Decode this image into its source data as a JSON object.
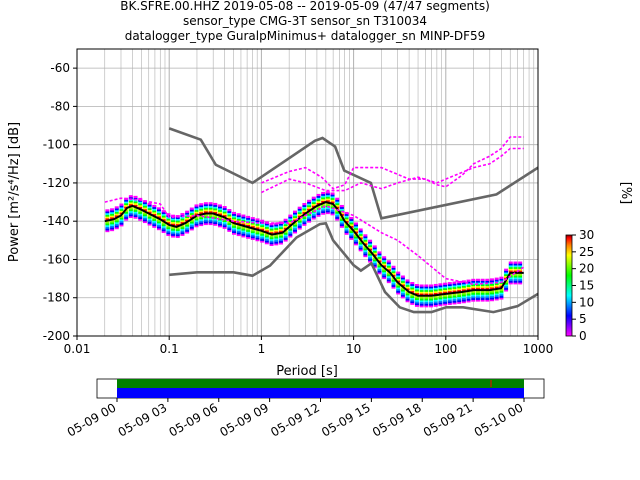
{
  "title_lines": [
    "BK.SFRE.00.HHZ   2019-05-08 -- 2019-05-09  (47/47 segments)",
    "sensor_type CMG-3T sensor_sn T310034",
    "datalogger_type GuralpMinimus+ datalogger_sn MINP-DF59"
  ],
  "colorbar": {
    "label": "[%]",
    "ticks": [
      "0",
      "5",
      "10",
      "15",
      "20",
      "25",
      "30"
    ],
    "range": [
      0,
      30
    ],
    "colors": [
      "#ff00ff",
      "#8000ff",
      "#0000ff",
      "#0080ff",
      "#00ffff",
      "#00ff80",
      "#00ff00",
      "#80ff00",
      "#ffff00",
      "#ff8000",
      "#ff0000",
      "#800000"
    ]
  },
  "timeline": {
    "tick_labels": [
      "05-09 00",
      "05-09 03",
      "05-09 06",
      "05-09 09",
      "05-09 12",
      "05-09 15",
      "05-09 18",
      "05-09 21",
      "05-10 00"
    ],
    "colors": {
      "top": "#008000",
      "bottom": "#0000ff"
    }
  },
  "chart_data": {
    "type": "line",
    "xlabel": "Period [s]",
    "ylabel": "Power [m²/s⁴/Hz] [dB]",
    "x_scale": "log",
    "xlim": [
      0.01,
      1000
    ],
    "ylim": [
      -200,
      -50
    ],
    "grid": true,
    "x_tick_labels": [
      "0.01",
      "0.1",
      "1",
      "10",
      "100",
      "1000"
    ],
    "y_tick_labels": [
      "-200",
      "-180",
      "-160",
      "-140",
      "-120",
      "-100",
      "-80",
      "-60"
    ],
    "y_ticks": [
      -200,
      -180,
      -160,
      -140,
      -120,
      -100,
      -80,
      -60
    ],
    "x_ticks": [
      0.01,
      0.1,
      1,
      10,
      100,
      1000
    ],
    "series": [
      {
        "style": "model",
        "color": "#666666",
        "x": [
          0.1,
          0.22,
          0.32,
          0.8,
          3.8,
          4.6,
          6.3,
          7.9,
          15.4,
          20,
          354.8,
          1000
        ],
        "y": [
          -91.5,
          -97.4,
          -110.5,
          -120,
          -98.0,
          -96.5,
          -101.0,
          -113.5,
          -120.0,
          -138.5,
          -126.0,
          -112.0
        ]
      },
      {
        "style": "model",
        "color": "#666666",
        "x": [
          0.1,
          0.2,
          0.5,
          0.8,
          1.24,
          2.4,
          4.3,
          5.0,
          6.0,
          10.0,
          12.0,
          15.6,
          21.9,
          31.6,
          45.0,
          70.0,
          101.0,
          154.0,
          328.0,
          600.0,
          1000.0
        ],
        "y": [
          -168.0,
          -166.7,
          -166.7,
          -168.5,
          -163.2,
          -148.5,
          -141.5,
          -141.1,
          -150.0,
          -163.0,
          -165.8,
          -162.0,
          -177.0,
          -185.0,
          -187.5,
          -187.5,
          -185.0,
          -185.0,
          -187.5,
          -184.4,
          -178.0
        ]
      },
      {
        "style": "mean",
        "color": "#000000",
        "x": [
          0.02,
          0.025,
          0.03,
          0.035,
          0.04,
          0.05,
          0.06,
          0.08,
          0.1,
          0.12,
          0.15,
          0.2,
          0.25,
          0.3,
          0.4,
          0.5,
          0.7,
          1.0,
          1.3,
          1.7,
          2.0,
          2.5,
          3.0,
          4.0,
          5.0,
          6.0,
          7.0,
          8.0,
          10.0,
          13.0,
          16.0,
          20.0,
          25.0,
          30.0,
          40.0,
          50.0,
          70.0,
          100.0,
          150.0,
          200.0,
          300.0,
          400.0,
          500.0,
          700.0
        ],
        "y": [
          -140,
          -139,
          -137,
          -133,
          -132,
          -134,
          -136,
          -139,
          -142,
          -143,
          -141,
          -137,
          -136,
          -136,
          -138,
          -141,
          -143,
          -145,
          -147,
          -146,
          -143,
          -139,
          -136,
          -132,
          -130,
          -131,
          -135,
          -140,
          -145,
          -152,
          -157,
          -163,
          -167,
          -172,
          -177,
          -179,
          -179,
          -178,
          -177,
          -176,
          -176,
          -175,
          -167,
          -167
        ]
      },
      {
        "style": "quantile",
        "color": "#ff00ff",
        "x": [
          0.02,
          0.03,
          0.05,
          0.08,
          0.1,
          0.2,
          0.5,
          1.0,
          2.0,
          5.0,
          10.0,
          20.0,
          30.0,
          50.0,
          100.0,
          200.0,
          400.0,
          700.0
        ],
        "y": [
          -130,
          -128,
          -129,
          -131,
          -138,
          -137,
          -140,
          -141,
          -141,
          -132,
          -137,
          -146,
          -150,
          -158,
          -170,
          -173,
          -172,
          -164
        ]
      },
      {
        "style": "quantile",
        "color": "#ff00ff",
        "x": [
          1.0,
          2.0,
          3.0,
          4.5,
          6.0,
          8.0,
          10.0,
          20.0,
          40.0,
          60.0,
          80.0,
          100.0,
          150.0,
          200.0,
          300.0,
          400.0,
          500.0,
          700.0
        ],
        "y": [
          -120,
          -114,
          -112,
          -117,
          -123,
          -121,
          -112,
          -112,
          -118,
          -118,
          -121,
          -122,
          -116,
          -110,
          -106,
          -102,
          -96,
          -96
        ]
      },
      {
        "style": "quantile",
        "color": "#ff00ff",
        "x": [
          1.0,
          2.0,
          3.0,
          5.0,
          8.0,
          12.0,
          20.0,
          30.0,
          50.0,
          80.0,
          100.0,
          200.0,
          300.0,
          400.0,
          500.0,
          700.0
        ],
        "y": [
          -125,
          -118,
          -120,
          -124,
          -124,
          -120,
          -123,
          -120,
          -117,
          -120,
          -118,
          -112,
          -110,
          -106,
          -102,
          -102
        ]
      }
    ]
  }
}
